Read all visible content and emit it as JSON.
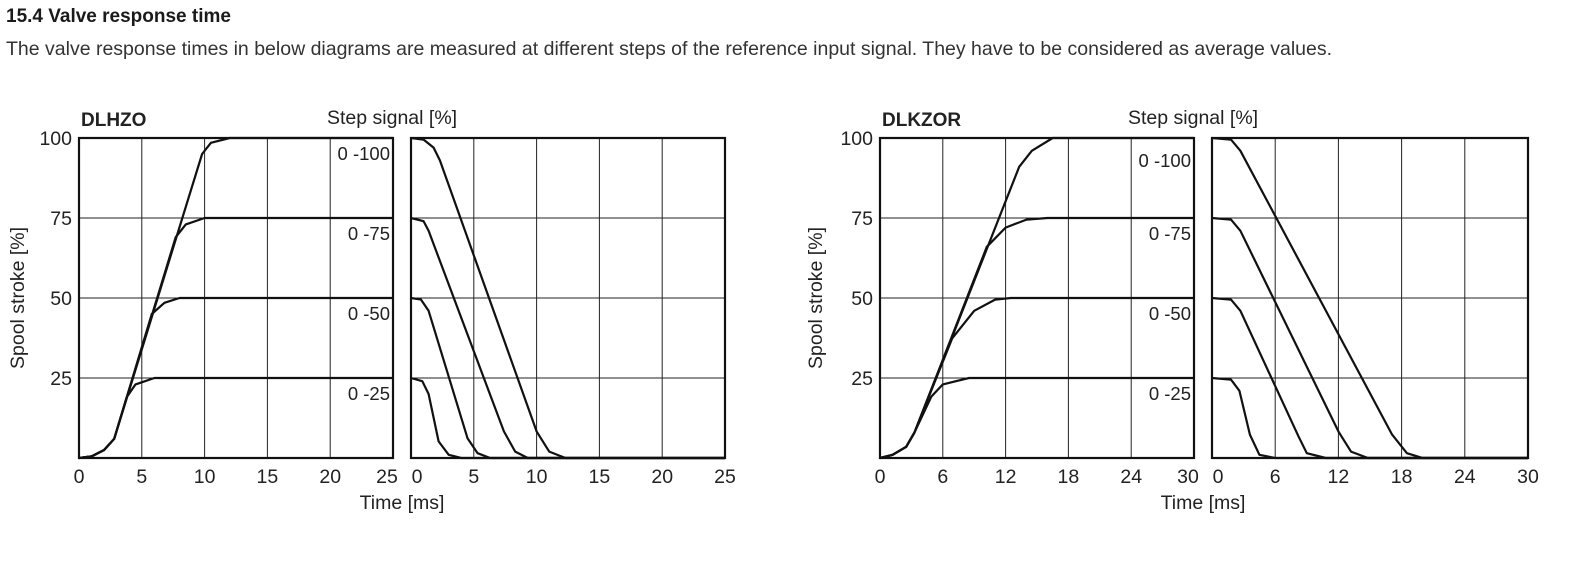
{
  "section": {
    "title": "15.4 Valve response time",
    "description": "The valve response times in below diagrams are measured at different steps of the reference input signal. They have to be  considered as average values."
  },
  "chart_data": [
    {
      "type": "line",
      "title": "DLHZO",
      "legend_title": "Step signal [%]",
      "xlabel": "Time [ms]",
      "ylabel": "Spool stroke [%]",
      "xlim": [
        0,
        25
      ],
      "ylim": [
        0,
        100
      ],
      "xticks": [
        0,
        5,
        10,
        15,
        20,
        25
      ],
      "yticks": [
        25,
        50,
        75,
        100
      ],
      "grid": true,
      "series_labels": [
        "0 -100",
        "0 -75",
        "0 -50",
        "0 -25"
      ],
      "rise": [
        {
          "name": "0 -100",
          "points": [
            [
              0,
              0
            ],
            [
              1,
              0.5
            ],
            [
              2,
              2.5
            ],
            [
              2.8,
              6
            ],
            [
              9.8,
              95
            ],
            [
              10.5,
              98.5
            ],
            [
              12,
              100
            ],
            [
              25,
              100
            ]
          ]
        },
        {
          "name": "0 -75",
          "points": [
            [
              0,
              0
            ],
            [
              1,
              0.5
            ],
            [
              2,
              2.5
            ],
            [
              2.8,
              6
            ],
            [
              7.7,
              69
            ],
            [
              8.5,
              73
            ],
            [
              10,
              75
            ],
            [
              25,
              75
            ]
          ]
        },
        {
          "name": "0 -50",
          "points": [
            [
              0,
              0
            ],
            [
              1,
              0.5
            ],
            [
              2,
              2.5
            ],
            [
              2.8,
              6
            ],
            [
              5.8,
              45
            ],
            [
              6.8,
              48.5
            ],
            [
              8,
              50
            ],
            [
              25,
              50
            ]
          ]
        },
        {
          "name": "0 -25",
          "points": [
            [
              0,
              0
            ],
            [
              1,
              0.5
            ],
            [
              2,
              2.5
            ],
            [
              2.8,
              6
            ],
            [
              3.8,
              19
            ],
            [
              4.5,
              23
            ],
            [
              6,
              25
            ],
            [
              25,
              25
            ]
          ]
        }
      ],
      "fall": [
        {
          "name": "0 -100",
          "points": [
            [
              0,
              100
            ],
            [
              1,
              99.5
            ],
            [
              1.8,
              97
            ],
            [
              2.3,
              93
            ],
            [
              10,
              8.3
            ],
            [
              11,
              2
            ],
            [
              12.3,
              0
            ],
            [
              25,
              0
            ]
          ]
        },
        {
          "name": "0 -75",
          "points": [
            [
              0,
              75
            ],
            [
              1,
              74
            ],
            [
              1.4,
              71
            ],
            [
              7.4,
              8.3
            ],
            [
              8.3,
              2
            ],
            [
              9.3,
              0
            ],
            [
              25,
              0
            ]
          ]
        },
        {
          "name": "0 -50",
          "points": [
            [
              0,
              50
            ],
            [
              0.8,
              49.5
            ],
            [
              1.4,
              46
            ],
            [
              4.5,
              6.2
            ],
            [
              5.3,
              1.5
            ],
            [
              6.3,
              0
            ],
            [
              25,
              0
            ]
          ]
        },
        {
          "name": "0 -25",
          "points": [
            [
              0,
              25
            ],
            [
              0.9,
              24
            ],
            [
              1.4,
              20
            ],
            [
              2.2,
              5.2
            ],
            [
              3,
              1
            ],
            [
              4,
              0
            ],
            [
              25,
              0
            ]
          ]
        }
      ]
    },
    {
      "type": "line",
      "title": "DLKZOR",
      "legend_title": "Step signal [%]",
      "xlabel": "Time [ms]",
      "ylabel": "Spool stroke [%]",
      "xlim": [
        0,
        30
      ],
      "ylim": [
        0,
        100
      ],
      "xticks": [
        0,
        6,
        12,
        18,
        24,
        30
      ],
      "yticks": [
        25,
        50,
        75,
        100
      ],
      "grid": true,
      "series_labels": [
        "0 -100",
        "0 -75",
        "0 -50",
        "0 -25"
      ],
      "rise": [
        {
          "name": "0 -100",
          "points": [
            [
              0,
              0
            ],
            [
              1.2,
              1
            ],
            [
              2.5,
              3.5
            ],
            [
              3.3,
              8
            ],
            [
              13.3,
              91
            ],
            [
              14.5,
              96
            ],
            [
              16.5,
              100
            ],
            [
              30,
              100
            ]
          ]
        },
        {
          "name": "0 -75",
          "points": [
            [
              0,
              0
            ],
            [
              1.2,
              1
            ],
            [
              2.5,
              3.5
            ],
            [
              3.3,
              8
            ],
            [
              10.2,
              66
            ],
            [
              12,
              72
            ],
            [
              14,
              74.5
            ],
            [
              16,
              75
            ],
            [
              30,
              75
            ]
          ]
        },
        {
          "name": "0 -50",
          "points": [
            [
              0,
              0
            ],
            [
              1.2,
              1
            ],
            [
              2.5,
              3.5
            ],
            [
              3.3,
              8
            ],
            [
              6.9,
              37.4
            ],
            [
              9,
              46
            ],
            [
              11,
              49.5
            ],
            [
              12.5,
              50
            ],
            [
              30,
              50
            ]
          ]
        },
        {
          "name": "0 -25",
          "points": [
            [
              0,
              0
            ],
            [
              1.2,
              1
            ],
            [
              2.5,
              3.5
            ],
            [
              3.3,
              8
            ],
            [
              4.9,
              19.2
            ],
            [
              6,
              23
            ],
            [
              8.5,
              25
            ],
            [
              30,
              25
            ]
          ]
        }
      ],
      "fall": [
        {
          "name": "0 -100",
          "points": [
            [
              0,
              100
            ],
            [
              1.8,
              99.5
            ],
            [
              2.7,
              96
            ],
            [
              17.1,
              7.3
            ],
            [
              18.5,
              1.5
            ],
            [
              20,
              0
            ],
            [
              30,
              0
            ]
          ]
        },
        {
          "name": "0 -75",
          "points": [
            [
              0,
              75
            ],
            [
              1.8,
              74.5
            ],
            [
              2.7,
              71
            ],
            [
              12,
              8.3
            ],
            [
              13.2,
              2
            ],
            [
              14.8,
              0
            ],
            [
              30,
              0
            ]
          ]
        },
        {
          "name": "0 -50",
          "points": [
            [
              0,
              50
            ],
            [
              1.8,
              49.5
            ],
            [
              2.7,
              46
            ],
            [
              8.2,
              6.8
            ],
            [
              9,
              1.5
            ],
            [
              10.8,
              0
            ],
            [
              30,
              0
            ]
          ]
        },
        {
          "name": "0 -25",
          "points": [
            [
              0,
              25
            ],
            [
              1.8,
              24.5
            ],
            [
              2.6,
              21
            ],
            [
              3.6,
              7.3
            ],
            [
              4.5,
              1
            ],
            [
              6,
              0
            ],
            [
              30,
              0
            ]
          ]
        }
      ]
    }
  ]
}
